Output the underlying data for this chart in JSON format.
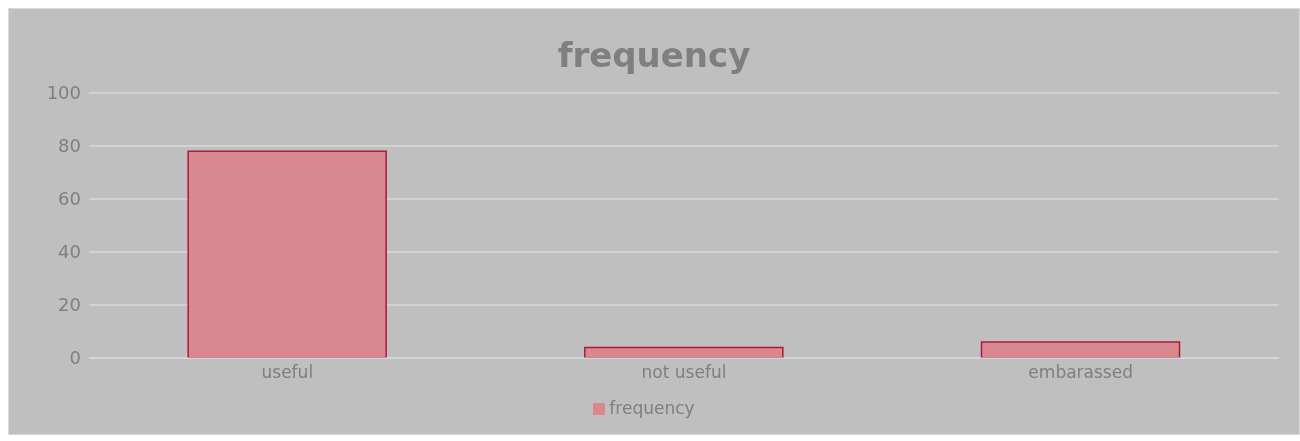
{
  "chart_data": {
    "type": "bar",
    "title": "frequency",
    "categories": [
      "useful",
      "not useful",
      "embarassed"
    ],
    "series": [
      {
        "name": "frequency",
        "color": "#d98890",
        "values": [
          78,
          4,
          6
        ]
      }
    ],
    "ylim": [
      0,
      100
    ],
    "yticks": [
      0,
      20,
      40,
      60,
      80,
      100
    ],
    "grid": "y",
    "legend": "bottom"
  }
}
